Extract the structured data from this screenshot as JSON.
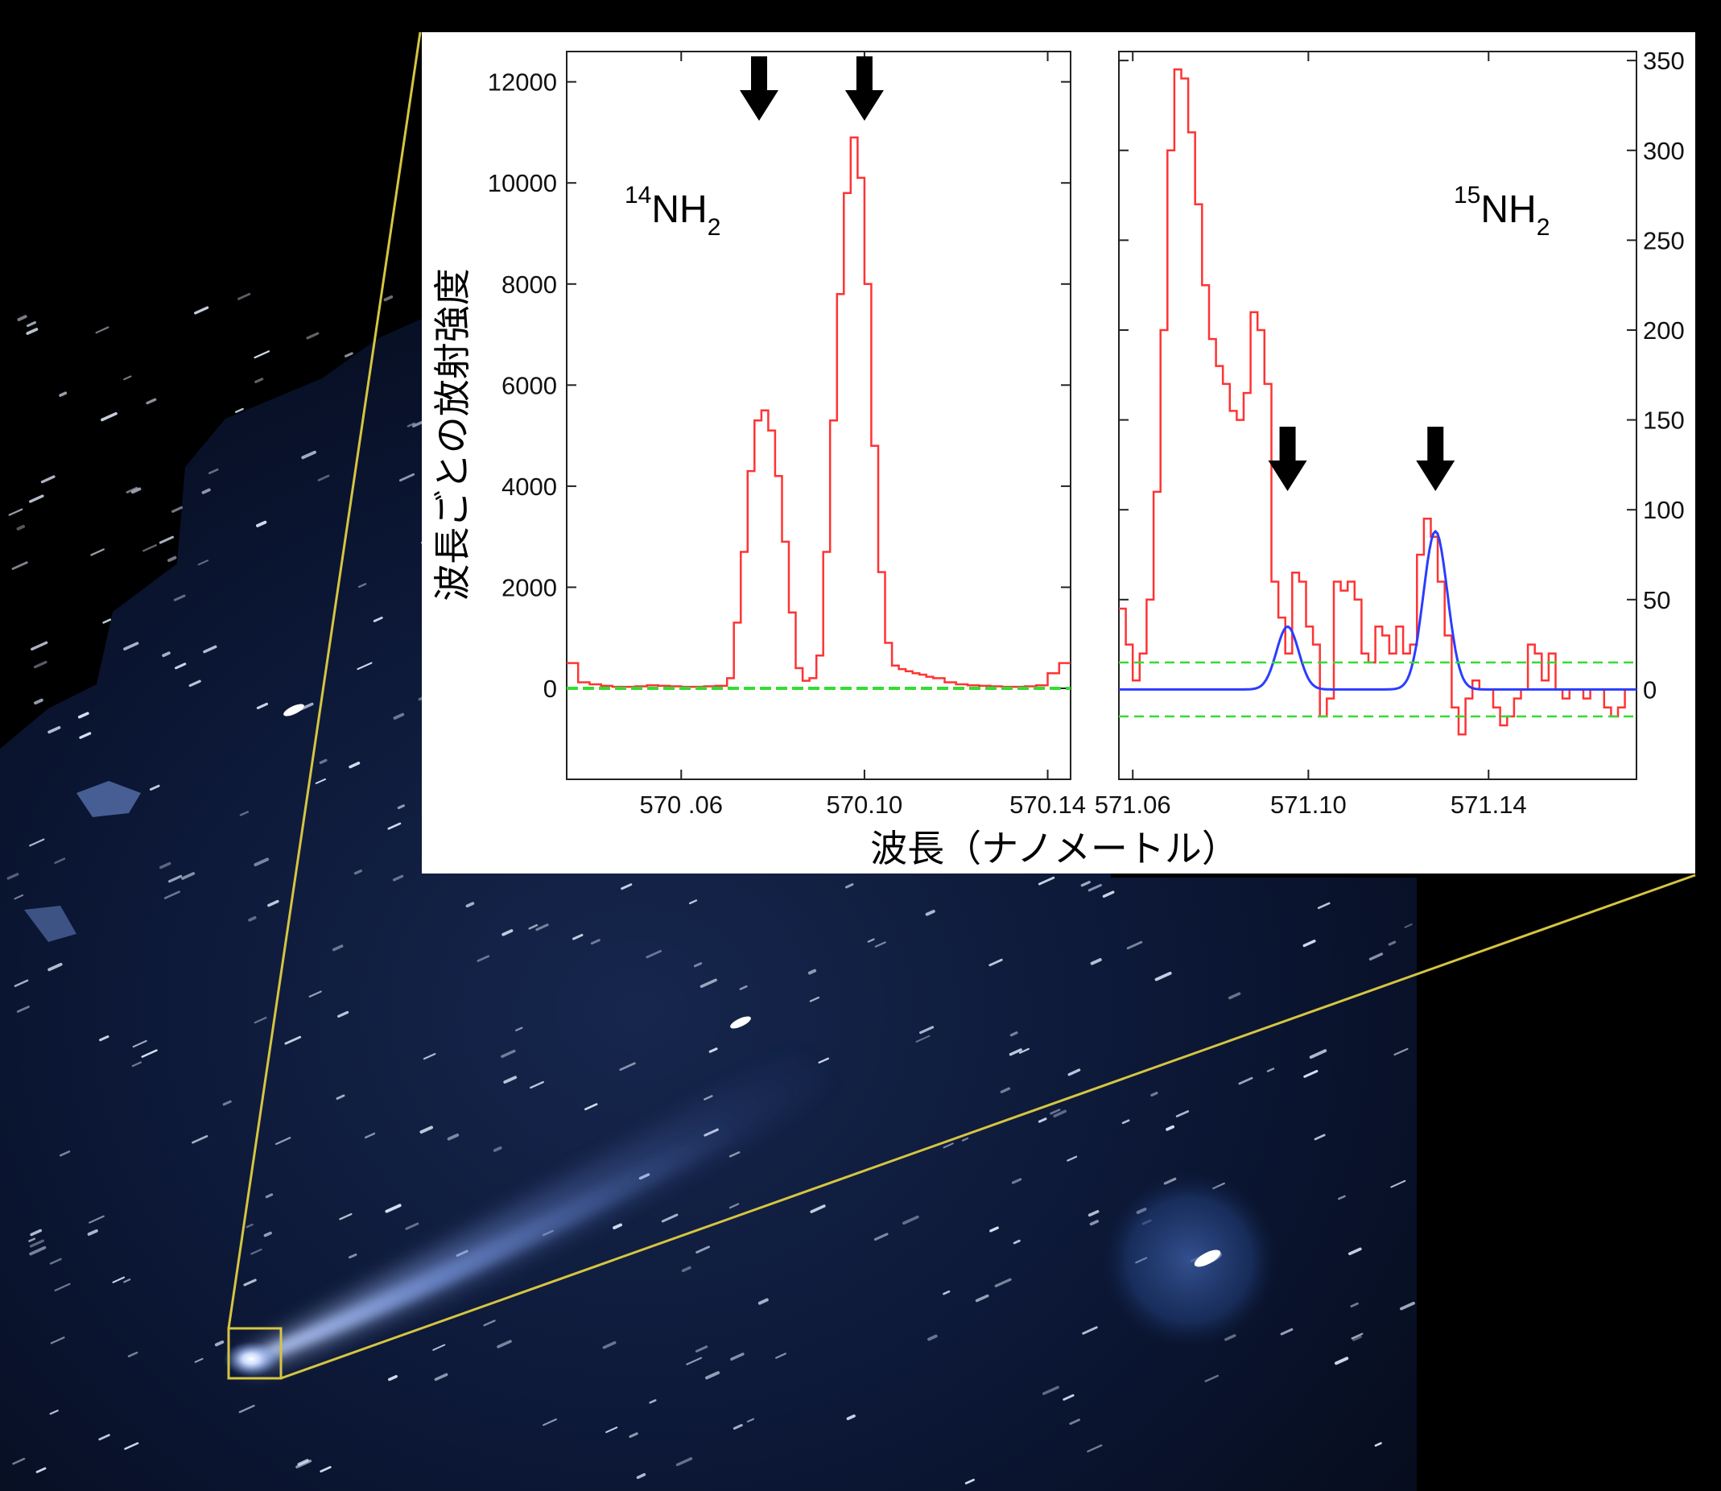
{
  "chart_data": [
    {
      "type": "line",
      "panel": "left",
      "annotation": {
        "superscript": "14",
        "base": "NH",
        "subscript": "2"
      },
      "xlabel": "波長（ナノメートル）",
      "ylabel": "波長ごとの放射強度",
      "xlim": [
        570.035,
        570.145
      ],
      "ylim": [
        -1800,
        12600
      ],
      "x_ticks": [
        "570 .06",
        "570.10",
        "570.14"
      ],
      "x_tick_values": [
        570.06,
        570.1,
        570.14
      ],
      "y_ticks": [
        "0",
        "2000",
        "4000",
        "6000",
        "8000",
        "10000",
        "12000"
      ],
      "y_tick_values": [
        0,
        2000,
        4000,
        6000,
        8000,
        10000,
        12000
      ],
      "arrows_x": [
        570.077,
        570.1
      ],
      "series": [
        {
          "color": "#ff3333",
          "style": "step",
          "x": [
            570.035,
            570.0375,
            570.04,
            570.0425,
            570.045,
            570.0475,
            570.05,
            570.0525,
            570.055,
            570.0575,
            570.06,
            570.0625,
            570.065,
            570.0675,
            570.07,
            570.0715,
            570.073,
            570.0745,
            570.076,
            570.0775,
            570.079,
            570.0805,
            570.082,
            570.0835,
            570.085,
            570.0865,
            570.088,
            570.0895,
            570.091,
            570.0925,
            570.094,
            570.0955,
            570.097,
            570.0985,
            570.1,
            570.1015,
            570.103,
            570.1045,
            570.106,
            570.1075,
            570.109,
            570.1105,
            570.112,
            570.1135,
            570.115,
            570.1175,
            570.12,
            570.1225,
            570.125,
            570.1275,
            570.13,
            570.1325,
            570.135,
            570.1375,
            570.14,
            570.1425,
            570.145
          ],
          "y": [
            500,
            120,
            80,
            50,
            30,
            30,
            40,
            60,
            50,
            40,
            30,
            30,
            40,
            50,
            200,
            1300,
            2700,
            4300,
            5300,
            5500,
            5100,
            4200,
            2900,
            1500,
            400,
            150,
            200,
            650,
            2700,
            5300,
            7800,
            9800,
            10900,
            10100,
            8000,
            4800,
            2300,
            900,
            450,
            380,
            340,
            300,
            270,
            230,
            200,
            120,
            80,
            60,
            50,
            40,
            30,
            30,
            40,
            60,
            300,
            500,
            500
          ]
        },
        {
          "color": "#33dd33",
          "style": "dashed",
          "x": [
            570.035,
            570.145
          ],
          "y": [
            0,
            0
          ]
        }
      ]
    },
    {
      "type": "line",
      "panel": "right",
      "annotation": {
        "superscript": "15",
        "base": "NH",
        "subscript": "2"
      },
      "xlim": [
        571.059,
        571.171
      ],
      "ylim": [
        -50,
        355
      ],
      "x_ticks": [
        "571.06",
        "571.10",
        "571.14"
      ],
      "x_tick_values": [
        571.062,
        571.1,
        571.139
      ],
      "y_ticks": [
        "0",
        "50",
        "100",
        "150",
        "200",
        "250",
        "300",
        "350"
      ],
      "y_tick_values": [
        0,
        50,
        100,
        150,
        200,
        250,
        300,
        350
      ],
      "arrows_x": [
        571.0955,
        571.1275
      ],
      "series": [
        {
          "color": "#ff3333",
          "style": "step",
          "x": [
            571.059,
            571.0605,
            571.062,
            571.0635,
            571.065,
            571.0665,
            571.068,
            571.0695,
            571.071,
            571.0725,
            571.074,
            571.0755,
            571.077,
            571.0785,
            571.08,
            571.0815,
            571.083,
            571.0845,
            571.086,
            571.0875,
            571.089,
            571.0905,
            571.092,
            571.0935,
            571.095,
            571.0965,
            571.098,
            571.0995,
            571.101,
            571.1025,
            571.104,
            571.1055,
            571.107,
            571.1085,
            571.11,
            571.1115,
            571.113,
            571.1145,
            571.116,
            571.1175,
            571.119,
            571.1205,
            571.122,
            571.1235,
            571.125,
            571.1265,
            571.128,
            571.1295,
            571.131,
            571.1325,
            571.134,
            571.1355,
            571.137,
            571.1385,
            571.14,
            571.1415,
            571.143,
            571.1445,
            571.146,
            571.1475,
            571.149,
            571.1505,
            571.152,
            571.1535,
            571.155,
            571.1565,
            571.158,
            571.1595,
            571.161,
            571.1625,
            571.164,
            571.1655,
            571.167,
            571.1685,
            571.17
          ],
          "y": [
            45,
            25,
            5,
            20,
            50,
            110,
            200,
            300,
            345,
            340,
            310,
            270,
            225,
            195,
            180,
            170,
            155,
            150,
            165,
            210,
            200,
            170,
            60,
            40,
            20,
            65,
            60,
            35,
            25,
            -15,
            -5,
            60,
            55,
            60,
            50,
            20,
            15,
            35,
            30,
            20,
            35,
            20,
            25,
            75,
            95,
            85,
            60,
            30,
            -10,
            -25,
            -5,
            5,
            0,
            0,
            -10,
            -20,
            -15,
            -5,
            0,
            25,
            20,
            5,
            20,
            0,
            -5,
            0,
            0,
            -5,
            0,
            0,
            -10,
            -15,
            -10,
            0,
            0
          ]
        },
        {
          "color": "#2a3dff",
          "style": "line",
          "peaks": [
            {
              "center": 571.0955,
              "amplitude": 35,
              "sigma": 0.0024
            },
            {
              "center": 571.1275,
              "amplitude": 88,
              "sigma": 0.0026
            }
          ]
        },
        {
          "color": "#33dd33",
          "style": "dashed",
          "levels": [
            15,
            -15
          ]
        }
      ]
    }
  ],
  "background": {
    "colors": {
      "sky": "#050914",
      "field": "#0a1633",
      "comet": "#a9c2ff",
      "star": "#e3ecff"
    },
    "zoom_box_color": "#d6c541"
  }
}
